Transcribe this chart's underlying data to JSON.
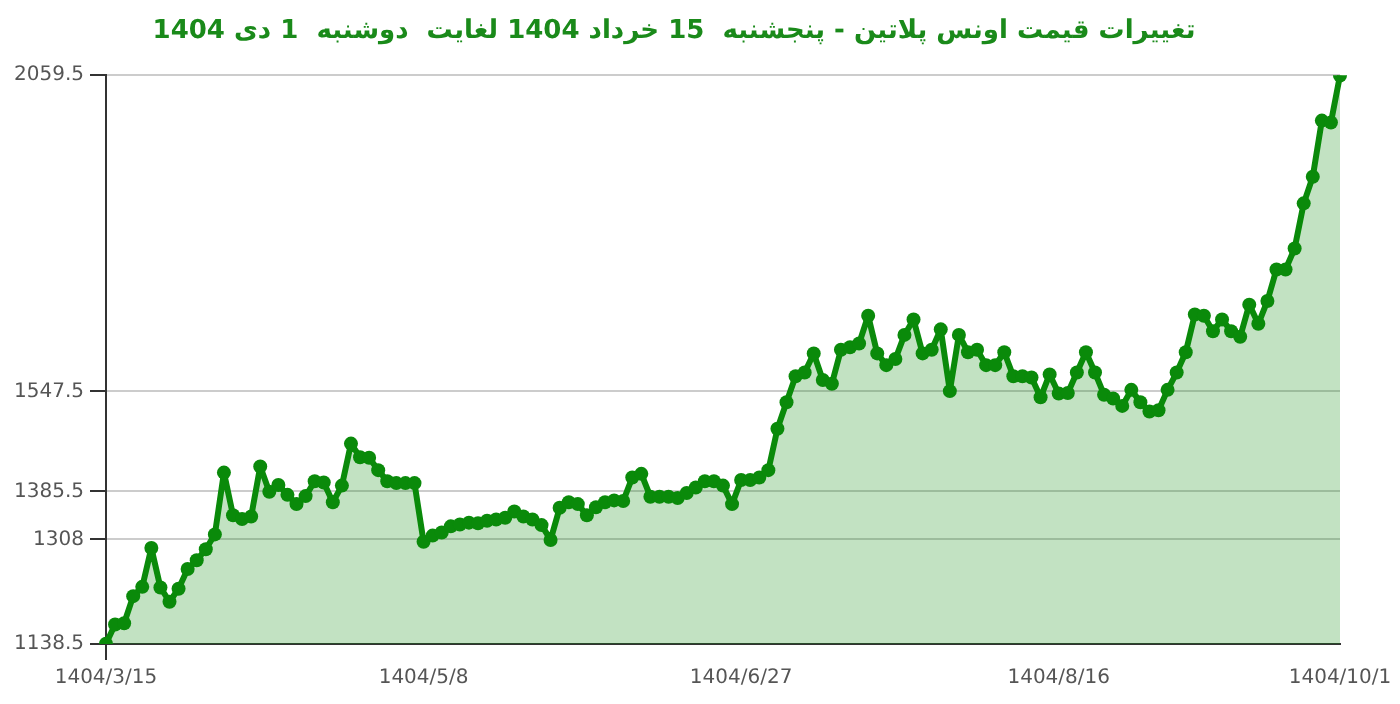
{
  "chart_data": {
    "type": "area",
    "title": "تغییرات قیمت اونس پلاتین - پنجشنبه  15 خرداد 1404 لغایت  دوشنبه  1 دی 1404",
    "categories": [
      "1404/3/15",
      null,
      null,
      null,
      null,
      null,
      null,
      null,
      null,
      null,
      null,
      null,
      null,
      null,
      null,
      null,
      null,
      null,
      null,
      null,
      null,
      null,
      null,
      null,
      null,
      null,
      null,
      null,
      null,
      null,
      null,
      null,
      null,
      null,
      null,
      "1404/5/8",
      null,
      null,
      null,
      null,
      null,
      null,
      null,
      null,
      null,
      null,
      null,
      null,
      null,
      null,
      null,
      null,
      null,
      null,
      null,
      null,
      null,
      null,
      null,
      null,
      null,
      null,
      null,
      null,
      null,
      null,
      null,
      null,
      null,
      null,
      "1404/6/27",
      null,
      null,
      null,
      null,
      null,
      null,
      null,
      null,
      null,
      null,
      null,
      null,
      null,
      null,
      null,
      null,
      null,
      null,
      null,
      null,
      null,
      null,
      null,
      null,
      null,
      null,
      null,
      null,
      null,
      null,
      null,
      null,
      null,
      null,
      "1404/8/16",
      null,
      null,
      null,
      null,
      null,
      null,
      null,
      null,
      null,
      null,
      null,
      null,
      null,
      null,
      null,
      null,
      null,
      null,
      null,
      null,
      null,
      null,
      null,
      null,
      null,
      null,
      null,
      null,
      null,
      null,
      "1404/10/1"
    ],
    "series": [
      {
        "color": "#0a8a0a",
        "values": [
          1139,
          1170,
          1172,
          1216,
          1231,
          1294,
          1230,
          1207,
          1228,
          1260,
          1274,
          1292,
          1316,
          1416,
          1347,
          1341,
          1345,
          1426,
          1385,
          1396,
          1380,
          1365,
          1378,
          1402,
          1400,
          1368,
          1395,
          1463,
          1441,
          1440,
          1420,
          1402,
          1399,
          1399,
          1399,
          1304,
          1314,
          1319,
          1329,
          1332,
          1335,
          1334,
          1338,
          1340,
          1343,
          1353,
          1345,
          1340,
          1331,
          1307,
          1359,
          1368,
          1365,
          1347,
          1360,
          1368,
          1371,
          1370,
          1408,
          1414,
          1377,
          1377,
          1377,
          1375,
          1383,
          1392,
          1402,
          1402,
          1395,
          1365,
          1404,
          1404,
          1408,
          1420,
          1487,
          1530,
          1572,
          1578,
          1609,
          1566,
          1560,
          1615,
          1619,
          1625,
          1670,
          1609,
          1590,
          1600,
          1639,
          1664,
          1609,
          1615,
          1648,
          1548,
          1639,
          1611,
          1615,
          1590,
          1590,
          1611,
          1572,
          1572,
          1570,
          1538,
          1575,
          1544,
          1545,
          1578,
          1611,
          1578,
          1542,
          1536,
          1524,
          1550,
          1530,
          1515,
          1517,
          1550,
          1578,
          1611,
          1672,
          1670,
          1645,
          1664,
          1645,
          1636,
          1688,
          1657,
          1694,
          1745,
          1745,
          1779,
          1852,
          1895,
          1986,
          1983,
          2059
        ]
      }
    ],
    "ylim": [
      1138.5,
      2059.5
    ],
    "yticks": [
      1138.5,
      1308,
      1385.5,
      1547.5,
      2059.5
    ],
    "grid": "y",
    "legend": false,
    "marker": "circle",
    "line_style": "solid"
  }
}
